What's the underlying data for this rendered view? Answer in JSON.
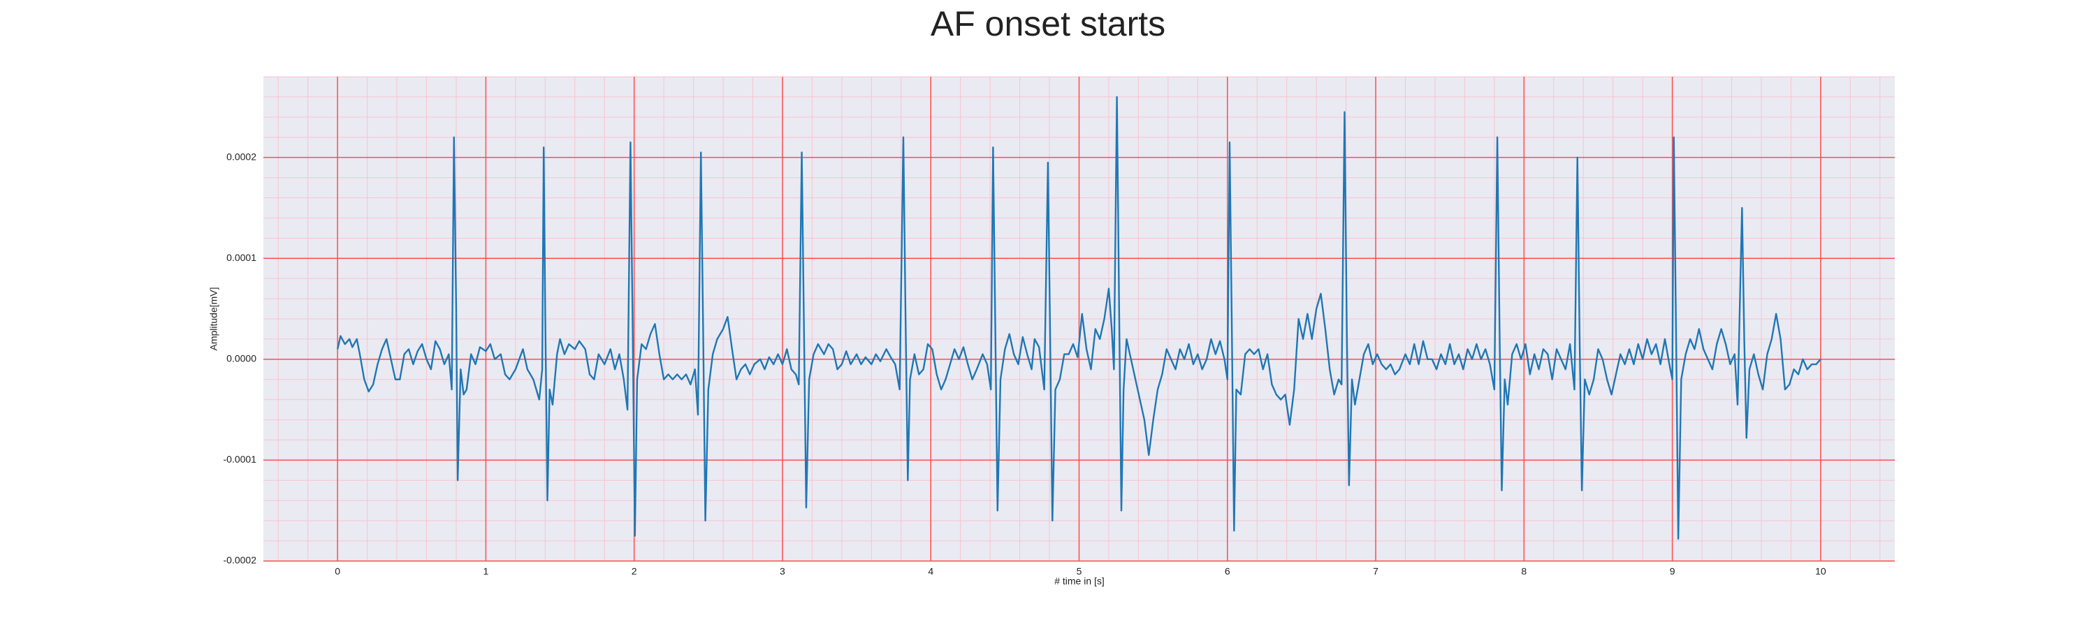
{
  "chart_data": {
    "type": "line",
    "title": "AF onset starts",
    "xlabel": "# time in [s]",
    "ylabel": "Amplitude[mV]",
    "color": "#1f77b4",
    "background": "#eaeaf2",
    "grid": true,
    "grid_color": "#ff4d4d",
    "minor_grid_color": "#f7c4d0",
    "xlim": [
      -0.5,
      10.5
    ],
    "ylim": [
      -0.0002,
      0.00028
    ],
    "xticks": [
      0,
      1,
      2,
      3,
      4,
      5,
      6,
      7,
      8,
      9,
      10
    ],
    "yticks": [
      -0.0002,
      -0.0001,
      {
        "value": 0,
        "label": "0.0000"
      },
      0.0001,
      0.0002
    ],
    "xminorticks": [
      -0.4,
      -0.2,
      0.2,
      0.4,
      0.6,
      0.8,
      1.2,
      1.4,
      1.6,
      1.8,
      2.2,
      2.4,
      2.6,
      2.8,
      3.2,
      3.4,
      3.6,
      3.8,
      4.2,
      4.4,
      4.6,
      4.8,
      5.2,
      5.4,
      5.6,
      5.8,
      6.2,
      6.4,
      6.6,
      6.8,
      7.2,
      7.4,
      7.6,
      7.8,
      8.2,
      8.4,
      8.6,
      8.8,
      9.2,
      9.4,
      9.6,
      9.8,
      10.2,
      10.4
    ],
    "yminorticks": [
      -0.00018,
      -0.00016,
      -0.00014,
      -0.00012,
      -8e-05,
      -6e-05,
      -4e-05,
      -2e-05,
      2e-05,
      4e-05,
      6e-05,
      8e-05,
      0.00012,
      0.00014,
      0.00016,
      0.00018,
      0.00022,
      0.00024,
      0.00026,
      0.00028
    ],
    "x": [
      0,
      0.02,
      0.05,
      0.08,
      0.1,
      0.13,
      0.15,
      0.18,
      0.21,
      0.24,
      0.27,
      0.3,
      0.33,
      0.36,
      0.39,
      0.42,
      0.45,
      0.48,
      0.51,
      0.54,
      0.57,
      0.6,
      0.63,
      0.66,
      0.69,
      0.72,
      0.75,
      0.77,
      0.785,
      0.8,
      0.81,
      0.83,
      0.85,
      0.87,
      0.9,
      0.93,
      0.96,
      1.0,
      1.03,
      1.06,
      1.1,
      1.13,
      1.16,
      1.2,
      1.25,
      1.28,
      1.32,
      1.36,
      1.38,
      1.39,
      1.4,
      1.415,
      1.43,
      1.45,
      1.48,
      1.5,
      1.53,
      1.56,
      1.6,
      1.63,
      1.67,
      1.7,
      1.73,
      1.76,
      1.8,
      1.84,
      1.87,
      1.9,
      1.93,
      1.955,
      1.975,
      1.99,
      2.005,
      2.02,
      2.05,
      2.08,
      2.11,
      2.14,
      2.17,
      2.2,
      2.23,
      2.26,
      2.29,
      2.32,
      2.35,
      2.38,
      2.41,
      2.43,
      2.45,
      2.465,
      2.48,
      2.5,
      2.53,
      2.56,
      2.6,
      2.63,
      2.66,
      2.69,
      2.72,
      2.75,
      2.78,
      2.81,
      2.85,
      2.88,
      2.91,
      2.94,
      2.97,
      3.0,
      3.03,
      3.06,
      3.09,
      3.11,
      3.13,
      3.145,
      3.16,
      3.18,
      3.21,
      3.24,
      3.28,
      3.31,
      3.34,
      3.37,
      3.4,
      3.43,
      3.46,
      3.5,
      3.53,
      3.56,
      3.6,
      3.63,
      3.66,
      3.7,
      3.73,
      3.76,
      3.79,
      3.815,
      3.83,
      3.845,
      3.86,
      3.89,
      3.92,
      3.95,
      3.98,
      4.01,
      4.04,
      4.07,
      4.1,
      4.13,
      4.16,
      4.19,
      4.22,
      4.25,
      4.28,
      4.31,
      4.35,
      4.38,
      4.405,
      4.42,
      4.435,
      4.45,
      4.47,
      4.5,
      4.53,
      4.56,
      4.59,
      4.62,
      4.65,
      4.68,
      4.7,
      4.73,
      4.765,
      4.79,
      4.805,
      4.82,
      4.84,
      4.87,
      4.9,
      4.93,
      4.96,
      4.99,
      5.02,
      5.05,
      5.08,
      5.11,
      5.14,
      5.17,
      5.2,
      5.22,
      5.235,
      5.255,
      5.27,
      5.285,
      5.3,
      5.32,
      5.35,
      5.38,
      5.41,
      5.44,
      5.47,
      5.5,
      5.53,
      5.56,
      5.59,
      5.62,
      5.65,
      5.68,
      5.71,
      5.74,
      5.77,
      5.8,
      5.83,
      5.86,
      5.89,
      5.92,
      5.95,
      5.98,
      6.0,
      6.015,
      6.03,
      6.045,
      6.06,
      6.09,
      6.12,
      6.15,
      6.18,
      6.21,
      6.24,
      6.27,
      6.3,
      6.33,
      6.36,
      6.39,
      6.42,
      6.45,
      6.48,
      6.51,
      6.54,
      6.57,
      6.6,
      6.63,
      6.66,
      6.69,
      6.72,
      6.75,
      6.77,
      6.79,
      6.805,
      6.82,
      6.84,
      6.86,
      6.89,
      6.92,
      6.95,
      6.98,
      7.01,
      7.04,
      7.07,
      7.1,
      7.13,
      7.16,
      7.2,
      7.23,
      7.26,
      7.29,
      7.32,
      7.35,
      7.38,
      7.41,
      7.44,
      7.47,
      7.5,
      7.53,
      7.56,
      7.59,
      7.62,
      7.65,
      7.68,
      7.71,
      7.74,
      7.77,
      7.8,
      7.82,
      7.835,
      7.85,
      7.87,
      7.89,
      7.92,
      7.95,
      7.98,
      8.01,
      8.04,
      8.07,
      8.1,
      8.13,
      8.16,
      8.19,
      8.22,
      8.25,
      8.28,
      8.31,
      8.34,
      8.36,
      8.375,
      8.39,
      8.41,
      8.44,
      8.47,
      8.5,
      8.53,
      8.56,
      8.59,
      8.62,
      8.65,
      8.68,
      8.71,
      8.74,
      8.77,
      8.8,
      8.83,
      8.86,
      8.89,
      8.92,
      8.95,
      8.98,
      9.0,
      9.01,
      9.025,
      9.04,
      9.06,
      9.09,
      9.12,
      9.15,
      9.18,
      9.21,
      9.24,
      9.27,
      9.3,
      9.33,
      9.36,
      9.39,
      9.42,
      9.44,
      9.47,
      9.485,
      9.5,
      9.52,
      9.55,
      9.58,
      9.61,
      9.64,
      9.67,
      9.7,
      9.73,
      9.76,
      9.79,
      9.82,
      9.85,
      9.88,
      9.91,
      9.94,
      9.97,
      10.0
    ],
    "values": [
      1e-05,
      2.3e-05,
      1.5e-05,
      2e-05,
      1.2e-05,
      2e-05,
      5e-06,
      -2e-05,
      -3.2e-05,
      -2.5e-05,
      -5e-06,
      1e-05,
      2e-05,
      0,
      -2e-05,
      -2e-05,
      5e-06,
      1e-05,
      -5e-06,
      8e-06,
      1.5e-05,
      0,
      -1e-05,
      1.8e-05,
      1e-05,
      -5e-06,
      5e-06,
      -3e-05,
      0.00022,
      5e-05,
      -0.00012,
      -1e-05,
      -3.5e-05,
      -3e-05,
      5e-06,
      -5e-06,
      1.2e-05,
      8e-06,
      1.5e-05,
      0,
      5e-06,
      -1.5e-05,
      -2e-05,
      -1e-05,
      1e-05,
      -1e-05,
      -2e-05,
      -4e-05,
      -1e-05,
      0.00021,
      5e-05,
      -0.00014,
      -3e-05,
      -4.5e-05,
      5e-06,
      2e-05,
      5e-06,
      1.5e-05,
      1e-05,
      1.8e-05,
      1e-05,
      -1.5e-05,
      -2e-05,
      5e-06,
      -5e-06,
      1e-05,
      -1e-05,
      5e-06,
      -2e-05,
      -5e-05,
      0.000215,
      3e-05,
      -0.000175,
      -2e-05,
      1.5e-05,
      1e-05,
      2.5e-05,
      3.5e-05,
      5e-06,
      -2e-05,
      -1.5e-05,
      -2e-05,
      -1.5e-05,
      -2e-05,
      -1.5e-05,
      -2.5e-05,
      -1e-05,
      -5.5e-05,
      0.000205,
      3e-05,
      -0.00016,
      -3e-05,
      5e-06,
      2e-05,
      3e-05,
      4.2e-05,
      1e-05,
      -2e-05,
      -1e-05,
      -5e-06,
      -1.5e-05,
      -5e-06,
      0,
      -1e-05,
      2e-06,
      -5e-06,
      5e-06,
      -5e-06,
      1e-05,
      -1e-05,
      -1.5e-05,
      -2.5e-05,
      0.000205,
      3e-05,
      -0.000147,
      -2e-05,
      5e-06,
      1.5e-05,
      5e-06,
      1.5e-05,
      1e-05,
      -1e-05,
      -5e-06,
      8e-06,
      -5e-06,
      5e-06,
      -5e-06,
      2e-06,
      -5e-06,
      5e-06,
      -2e-06,
      1e-05,
      2e-06,
      -5e-06,
      -3e-05,
      0.00022,
      4e-05,
      -0.00012,
      -2e-05,
      5e-06,
      -1.5e-05,
      -1e-05,
      1.5e-05,
      1e-05,
      -1.5e-05,
      -3e-05,
      -2e-05,
      -5e-06,
      1e-05,
      0,
      1.2e-05,
      -5e-06,
      -2e-05,
      -1e-05,
      5e-06,
      -5e-06,
      -3e-05,
      0.00021,
      3e-05,
      -0.00015,
      -2e-05,
      1e-05,
      2.5e-05,
      5e-06,
      -5e-06,
      2.2e-05,
      5e-06,
      -1e-05,
      2e-05,
      1.2e-05,
      -3e-05,
      0.000195,
      2e-05,
      -0.00016,
      -3e-05,
      -2e-05,
      5e-06,
      5e-06,
      1.5e-05,
      2e-06,
      4.5e-05,
      1e-05,
      -1e-05,
      3e-05,
      2e-05,
      4e-05,
      7e-05,
      3e-05,
      -1e-05,
      0.00026,
      5e-05,
      -0.00015,
      -3e-05,
      2e-05,
      0,
      -2e-05,
      -4e-05,
      -6e-05,
      -9.5e-05,
      -6e-05,
      -3e-05,
      -1.5e-05,
      1e-05,
      0,
      -1e-05,
      1e-05,
      0,
      1.5e-05,
      -5e-06,
      5e-06,
      -1e-05,
      0,
      2e-05,
      5e-06,
      1.8e-05,
      0,
      -2e-05,
      0.000215,
      3e-05,
      -0.00017,
      -3e-05,
      -3.5e-05,
      5e-06,
      1e-05,
      5e-06,
      1e-05,
      -1e-05,
      5e-06,
      -2.5e-05,
      -3.5e-05,
      -4e-05,
      -3.5e-05,
      -6.5e-05,
      -3e-05,
      4e-05,
      2e-05,
      4.5e-05,
      2e-05,
      5e-05,
      6.5e-05,
      3e-05,
      -1e-05,
      -3.5e-05,
      -2e-05,
      -2.5e-05,
      0.000245,
      3e-05,
      -0.000125,
      -2e-05,
      -4.5e-05,
      -2e-05,
      5e-06,
      1.5e-05,
      -5e-06,
      5e-06,
      -5e-06,
      -1e-05,
      -5e-06,
      -1.5e-05,
      -1e-05,
      5e-06,
      -5e-06,
      1.5e-05,
      -5e-06,
      1.8e-05,
      0,
      0,
      -1e-05,
      5e-06,
      -5e-06,
      1.5e-05,
      -5e-06,
      5e-06,
      -1e-05,
      1e-05,
      0,
      1.5e-05,
      0,
      1e-05,
      -5e-06,
      -3e-05,
      0.00022,
      3e-05,
      -0.00013,
      -2e-05,
      -4.5e-05,
      5e-06,
      1.5e-05,
      0,
      1.5e-05,
      -1.5e-05,
      5e-06,
      -1e-05,
      1e-05,
      5e-06,
      -2e-05,
      1e-05,
      0,
      -1e-05,
      1.5e-05,
      -3e-05,
      0.0002,
      2e-05,
      -0.00013,
      -2e-05,
      -3.5e-05,
      -2e-05,
      1e-05,
      0,
      -2e-05,
      -3.5e-05,
      -1.5e-05,
      5e-06,
      -5e-06,
      1e-05,
      -5e-06,
      1.5e-05,
      0,
      2e-05,
      5e-06,
      1.5e-05,
      -5e-06,
      2e-05,
      -5e-06,
      -2e-05,
      0.00022,
      3e-05,
      -0.000178,
      -2e-05,
      5e-06,
      2e-05,
      1e-05,
      3e-05,
      1e-05,
      0,
      -1e-05,
      1.5e-05,
      3e-05,
      1.5e-05,
      -5e-06,
      5e-06,
      -4.5e-05,
      0.00015,
      2e-05,
      -7.8e-05,
      -1e-05,
      5e-06,
      -1.5e-05,
      -3e-05,
      5e-06,
      2e-05,
      4.5e-05,
      2e-05,
      -3e-05,
      -2.5e-05,
      -1e-05,
      -1.5e-05,
      0,
      -1e-05,
      -5e-06,
      -5e-06,
      0
    ]
  }
}
